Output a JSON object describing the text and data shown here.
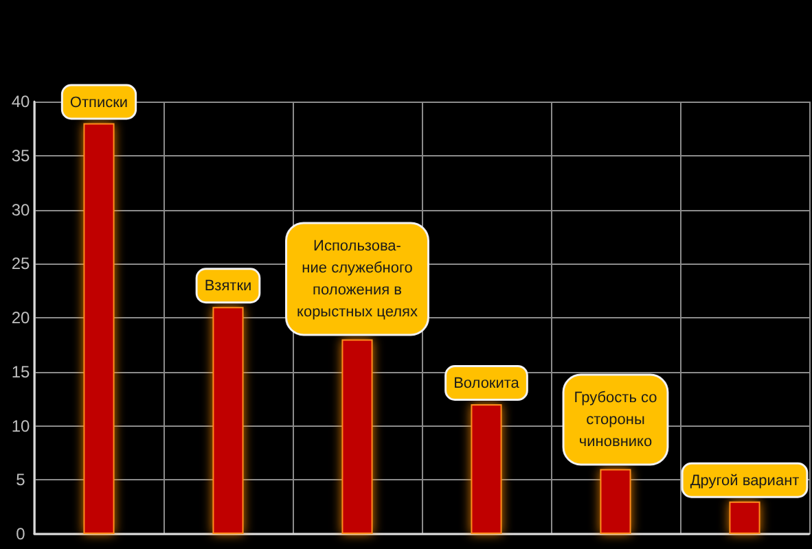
{
  "chart_data": {
    "type": "bar",
    "categories": [
      "Отписки",
      "Взятки",
      "Использова-\nние служебного\nположения в\nкорыстных целях",
      "Волокита",
      "Грубость со\nстороны\nчиновнико",
      "Другой вариант"
    ],
    "values": [
      38,
      21,
      18,
      12,
      6,
      3
    ],
    "color": "#c00000",
    "ylim": [
      0,
      40
    ],
    "yticks": [
      0,
      5,
      10,
      15,
      20,
      25,
      30,
      35,
      40
    ],
    "grid": true,
    "tick_labels": "y"
  }
}
